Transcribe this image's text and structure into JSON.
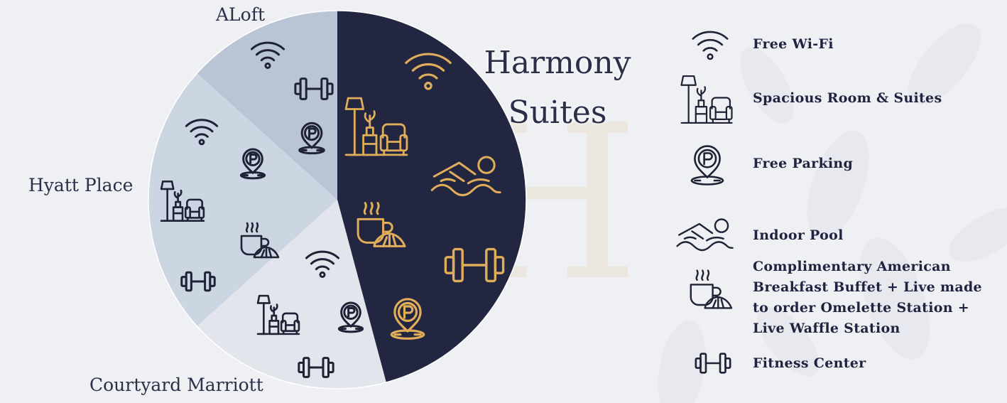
{
  "pie": {
    "segments": [
      {
        "label": "ALoft",
        "fill": "#b9c4d5"
      },
      {
        "label": "Hyatt Place",
        "fill": "#ccd5e2"
      },
      {
        "label": "Courtyard Marriott",
        "fill": "#e2e5eb"
      },
      {
        "label": "Harmony Suites",
        "fill": "#232640"
      }
    ],
    "harmony_title_line1": "Harmony",
    "harmony_title_line2": "Suites"
  },
  "colors": {
    "icon_dark": "#1f2235",
    "icon_gold": "#e0ad5a",
    "text": "#2b2f48"
  },
  "amenities": [
    {
      "icon": "wifi-icon",
      "label_lines": [
        "Free Wi-Fi"
      ]
    },
    {
      "icon": "room-icon",
      "label_lines": [
        "Spacious Room & Suites"
      ]
    },
    {
      "icon": "parking-icon",
      "label_lines": [
        "Free Parking"
      ]
    },
    {
      "icon": "pool-icon",
      "label_lines": [
        "Indoor Pool"
      ]
    },
    {
      "icon": "breakfast-icon",
      "label_lines": [
        "Complimentary American",
        "Breakfast Buffet + Live made",
        "to order Omelette Station +",
        "Live Waffle Station"
      ]
    },
    {
      "icon": "fitness-icon",
      "label_lines": [
        "Fitness Center"
      ]
    }
  ],
  "segment_icons": {
    "aloft": [
      "wifi-icon",
      "fitness-icon",
      "parking-icon"
    ],
    "hyatt_place": [
      "wifi-icon",
      "parking-icon",
      "room-icon",
      "breakfast-icon",
      "fitness-icon"
    ],
    "courtyard_marriott": [
      "wifi-icon",
      "room-icon",
      "parking-icon",
      "fitness-icon"
    ],
    "harmony_suites": [
      "wifi-icon",
      "room-icon",
      "pool-icon",
      "breakfast-icon",
      "fitness-icon",
      "parking-icon"
    ]
  }
}
